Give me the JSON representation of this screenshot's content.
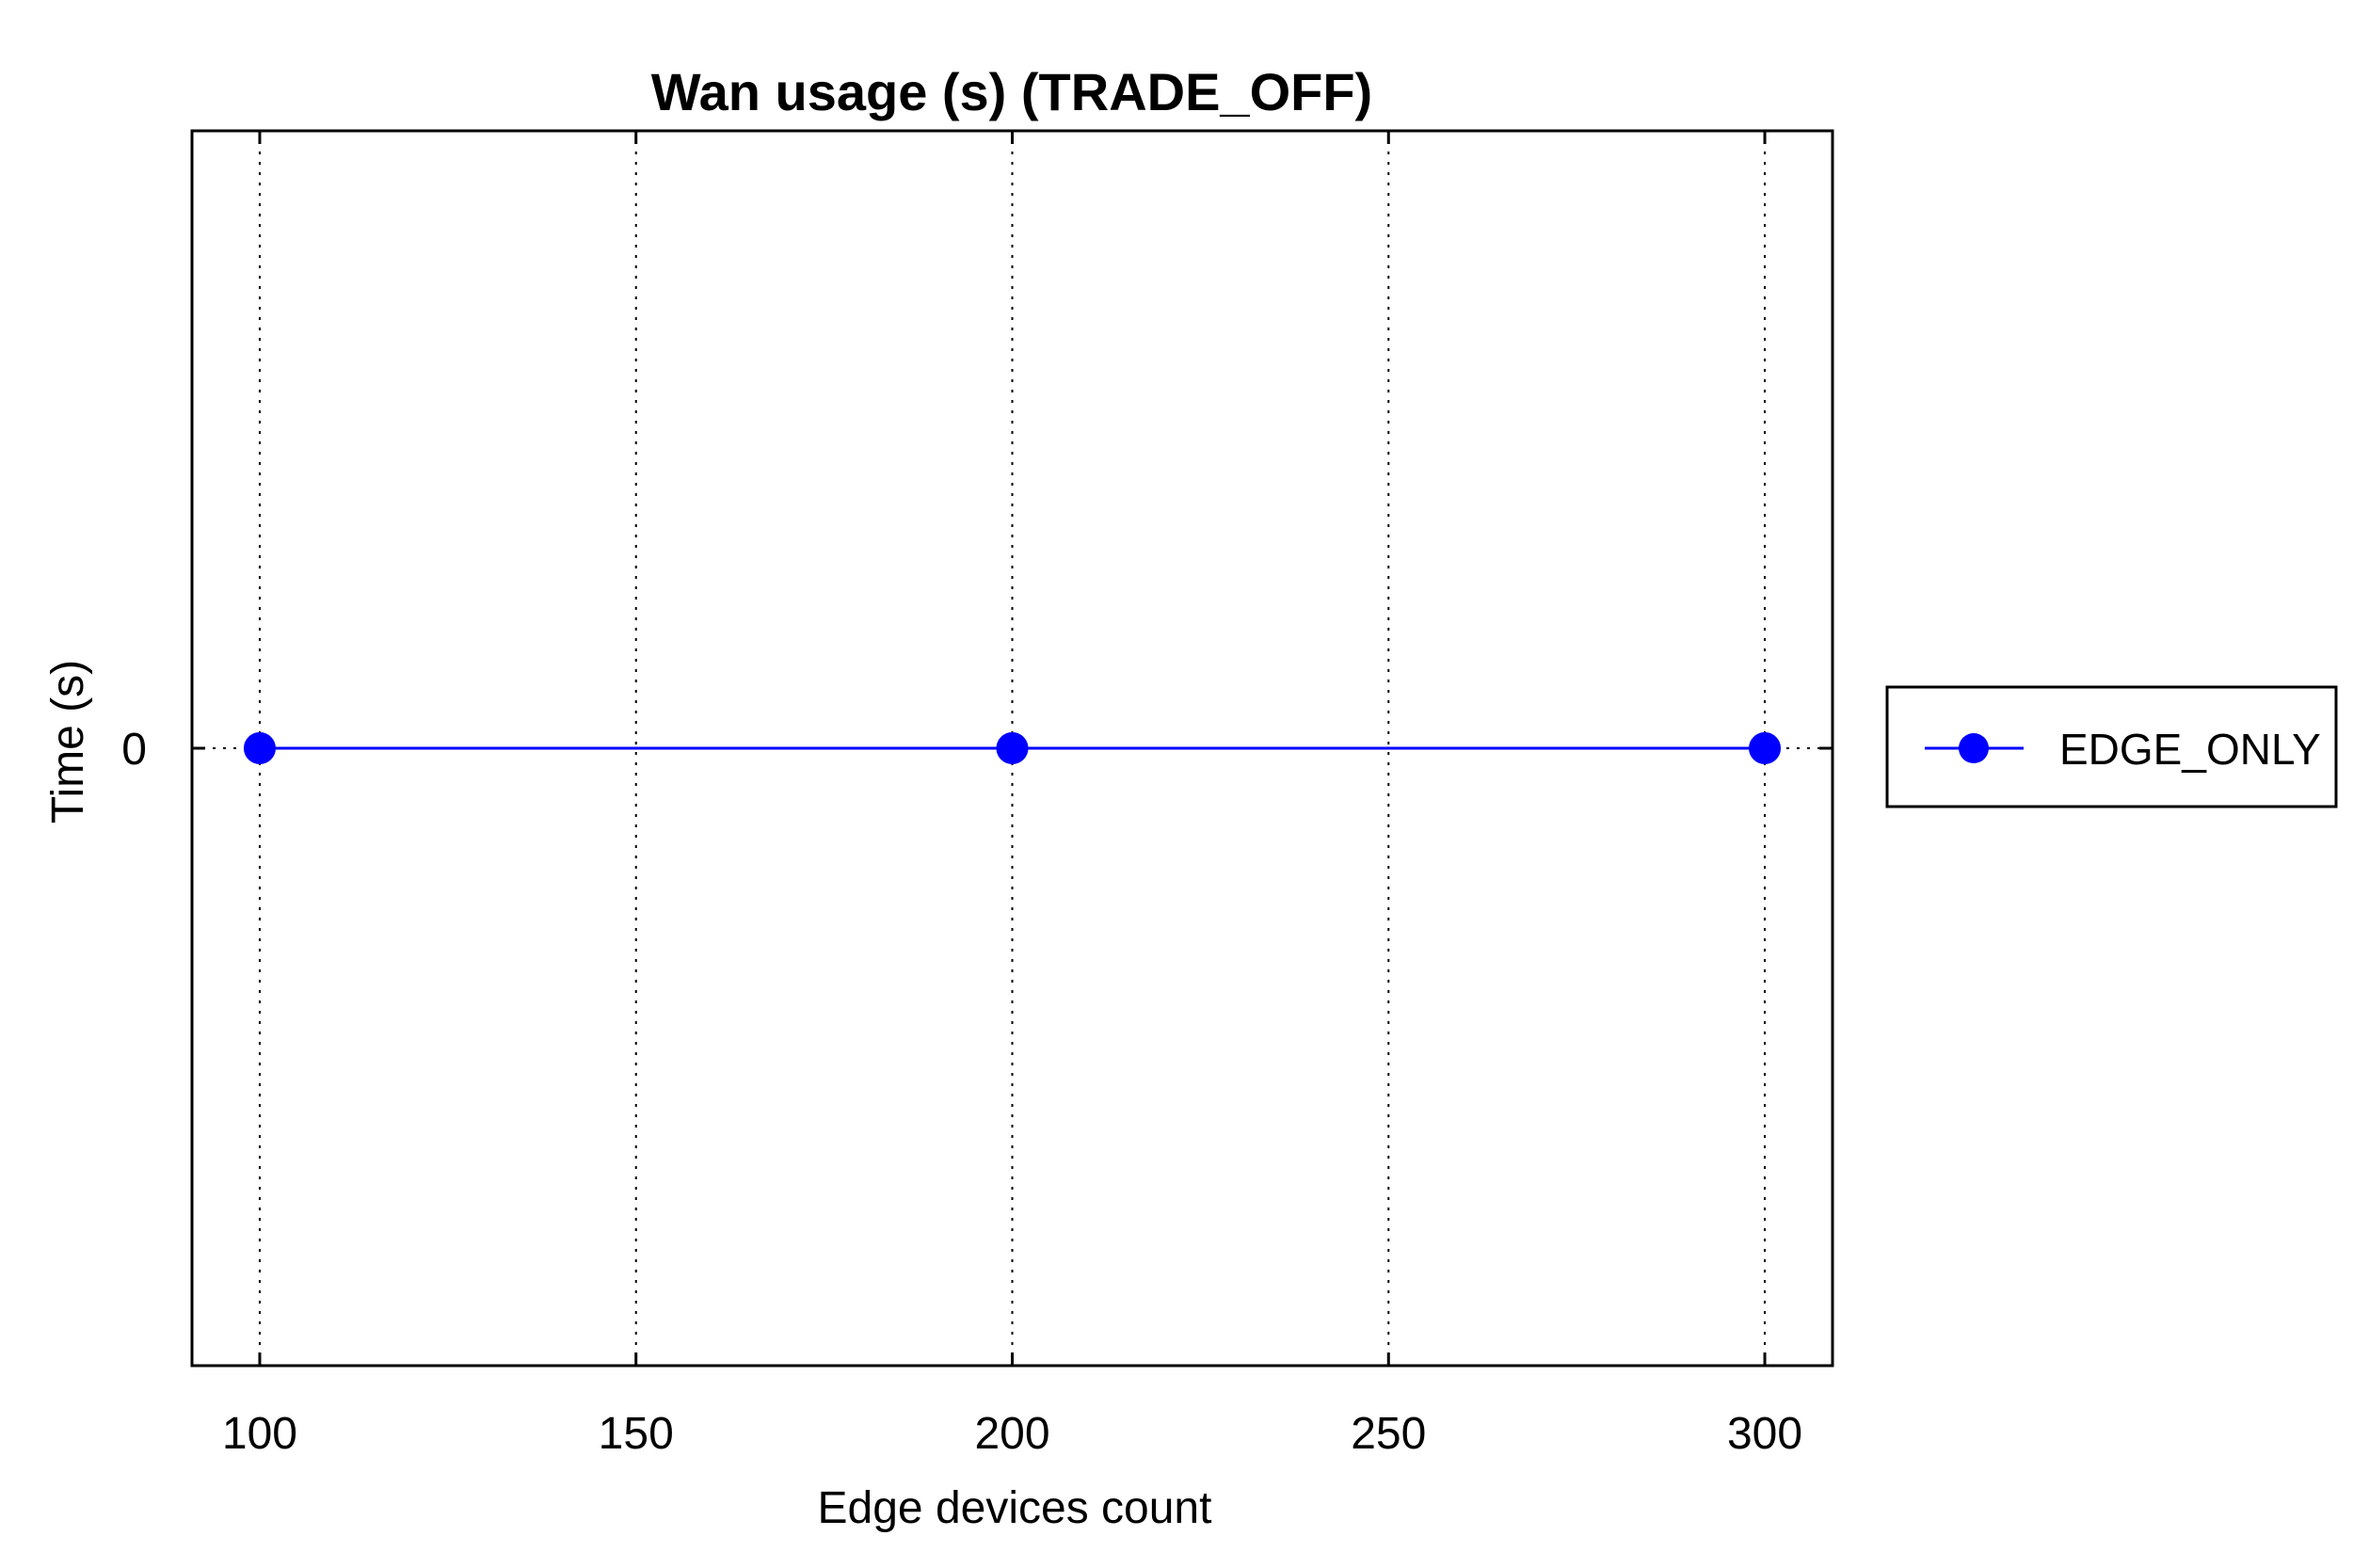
{
  "chart_data": {
    "type": "line",
    "title": "Wan usage (s) (TRADE_OFF)",
    "xlabel": "Edge devices count",
    "ylabel": "Time (s)",
    "x_ticks": [
      100,
      150,
      200,
      250,
      300
    ],
    "y_ticks": [
      0
    ],
    "xlim": [
      91,
      309
    ],
    "ylim": [
      -1,
      1
    ],
    "grid": true,
    "legend_position": "outside-right",
    "series": [
      {
        "name": "EDGE_ONLY",
        "color": "#0000ff",
        "marker": "circle",
        "x": [
          100,
          200,
          300
        ],
        "y": [
          0,
          0,
          0
        ]
      }
    ]
  }
}
